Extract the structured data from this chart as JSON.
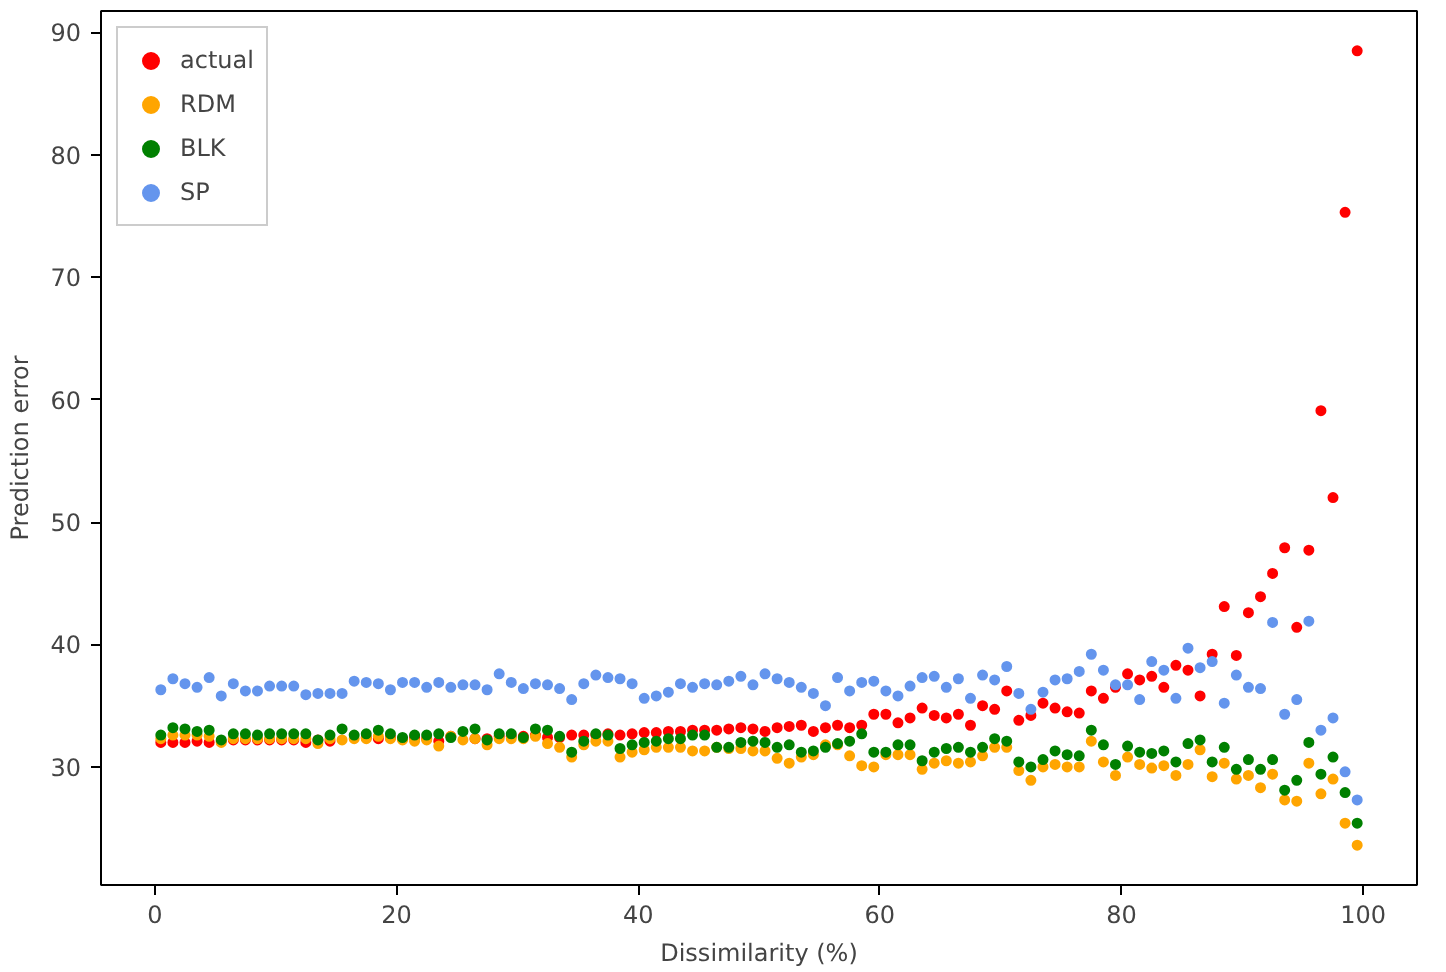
{
  "chart_data": {
    "type": "scatter",
    "xlabel": "Dissimilarity (%)",
    "ylabel": "Prediction error",
    "x": [
      0.5,
      1.5,
      2.5,
      3.5,
      4.5,
      5.5,
      6.5,
      7.5,
      8.5,
      9.5,
      10.5,
      11.5,
      12.5,
      13.5,
      14.5,
      15.5,
      16.5,
      17.5,
      18.5,
      19.5,
      20.5,
      21.5,
      22.5,
      23.5,
      24.5,
      25.5,
      26.5,
      27.5,
      28.5,
      29.5,
      30.5,
      31.5,
      32.5,
      33.5,
      34.5,
      35.5,
      36.5,
      37.5,
      38.5,
      39.5,
      40.5,
      41.5,
      42.5,
      43.5,
      44.5,
      45.5,
      46.5,
      47.5,
      48.5,
      49.5,
      50.5,
      51.5,
      52.5,
      53.5,
      54.5,
      55.5,
      56.5,
      57.5,
      58.5,
      59.5,
      60.5,
      61.5,
      62.5,
      63.5,
      64.5,
      65.5,
      66.5,
      67.5,
      68.5,
      69.5,
      70.5,
      71.5,
      72.5,
      73.5,
      74.5,
      75.5,
      76.5,
      77.5,
      78.5,
      79.5,
      80.5,
      81.5,
      82.5,
      83.5,
      84.5,
      85.5,
      86.5,
      87.5,
      88.5,
      89.5,
      90.5,
      91.5,
      92.5,
      93.5,
      94.5,
      95.5,
      96.5,
      97.5,
      98.5,
      99.5
    ],
    "series": [
      {
        "name": "actual",
        "color": "#ff0000",
        "values": [
          32.0,
          32.0,
          32.0,
          32.1,
          32.0,
          32.1,
          32.2,
          32.2,
          32.2,
          32.2,
          32.2,
          32.2,
          32.0,
          32.2,
          32.1,
          null,
          null,
          32.4,
          32.3,
          32.4,
          32.3,
          32.4,
          32.3,
          32.1,
          32.5,
          null,
          32.3,
          32.3,
          32.5,
          32.5,
          32.5,
          32.6,
          32.4,
          32.4,
          32.6,
          32.6,
          32.6,
          32.7,
          32.6,
          32.7,
          32.8,
          32.8,
          32.9,
          32.9,
          33.0,
          33.0,
          33.0,
          33.1,
          33.2,
          33.1,
          32.9,
          33.2,
          33.3,
          33.4,
          32.9,
          33.2,
          33.4,
          33.2,
          33.4,
          34.3,
          34.3,
          33.6,
          34.0,
          34.8,
          34.2,
          34.0,
          34.3,
          33.4,
          35.0,
          34.7,
          36.2,
          33.8,
          34.2,
          35.2,
          34.8,
          34.5,
          34.4,
          36.2,
          35.6,
          36.5,
          37.6,
          37.1,
          37.4,
          36.5,
          38.3,
          37.9,
          35.8,
          39.2,
          43.1,
          39.1,
          42.6,
          43.9,
          45.8,
          47.9,
          41.4,
          47.7,
          59.1,
          52.0,
          75.3,
          88.5
        ]
      },
      {
        "name": "RDM",
        "color": "#ffa500",
        "values": [
          32.3,
          32.6,
          32.6,
          32.6,
          32.5,
          32.0,
          32.3,
          32.3,
          32.3,
          32.3,
          32.3,
          32.3,
          32.3,
          31.9,
          32.3,
          32.2,
          32.3,
          32.3,
          32.5,
          32.3,
          32.2,
          32.1,
          32.2,
          31.7,
          32.5,
          32.2,
          32.3,
          31.8,
          32.3,
          32.3,
          32.3,
          32.5,
          31.9,
          31.6,
          30.8,
          31.8,
          32.1,
          32.1,
          30.8,
          31.2,
          31.4,
          31.6,
          31.6,
          31.6,
          31.3,
          31.3,
          31.6,
          31.5,
          31.5,
          31.3,
          31.3,
          30.7,
          30.3,
          30.8,
          31.0,
          31.8,
          31.8,
          30.9,
          30.1,
          30.0,
          31.0,
          31.0,
          31.0,
          29.8,
          30.3,
          30.5,
          30.3,
          30.4,
          30.9,
          31.6,
          31.6,
          29.7,
          28.9,
          30.0,
          30.2,
          30.0,
          30.0,
          32.1,
          30.4,
          29.3,
          30.8,
          30.2,
          29.9,
          30.1,
          29.3,
          30.2,
          31.4,
          29.2,
          30.3,
          29.0,
          29.3,
          28.3,
          29.4,
          27.3,
          27.2,
          30.3,
          27.8,
          29.0,
          25.4,
          23.6
        ]
      },
      {
        "name": "BLK",
        "color": "#008000",
        "values": [
          32.6,
          33.2,
          33.1,
          32.9,
          33.0,
          32.2,
          32.7,
          32.7,
          32.6,
          32.7,
          32.7,
          32.7,
          32.7,
          32.2,
          32.6,
          33.1,
          32.6,
          32.7,
          33.0,
          32.7,
          32.4,
          32.6,
          32.6,
          32.7,
          32.4,
          32.9,
          33.1,
          32.2,
          32.7,
          32.7,
          32.4,
          33.1,
          33.0,
          32.5,
          31.2,
          32.1,
          32.7,
          32.6,
          31.5,
          31.8,
          32.0,
          32.1,
          32.3,
          32.3,
          32.6,
          32.6,
          31.6,
          31.6,
          32.0,
          32.1,
          32.0,
          31.6,
          31.8,
          31.2,
          31.3,
          31.6,
          31.9,
          32.1,
          32.7,
          31.2,
          31.2,
          31.8,
          31.8,
          30.5,
          31.2,
          31.5,
          31.6,
          31.2,
          31.6,
          32.3,
          32.1,
          30.4,
          30.0,
          30.6,
          31.3,
          31.0,
          30.9,
          33.0,
          31.8,
          30.2,
          31.7,
          31.2,
          31.1,
          31.3,
          30.4,
          31.9,
          32.2,
          30.4,
          31.6,
          29.8,
          30.6,
          29.8,
          30.6,
          28.1,
          28.9,
          32.0,
          29.4,
          30.8,
          27.9,
          25.4
        ]
      },
      {
        "name": "SP",
        "color": "#6495ed",
        "values": [
          36.3,
          37.2,
          36.8,
          36.5,
          37.3,
          35.8,
          36.8,
          36.2,
          36.2,
          36.6,
          36.6,
          36.6,
          35.9,
          36.0,
          36.0,
          36.0,
          37.0,
          36.9,
          36.8,
          36.3,
          36.9,
          36.9,
          36.5,
          36.9,
          36.5,
          36.7,
          36.7,
          36.3,
          37.6,
          36.9,
          36.4,
          36.8,
          36.7,
          36.4,
          35.5,
          36.8,
          37.5,
          37.3,
          37.2,
          36.8,
          35.6,
          35.8,
          36.1,
          36.8,
          36.5,
          36.8,
          36.7,
          37.0,
          37.4,
          36.7,
          37.6,
          37.2,
          36.9,
          36.5,
          36.0,
          35.0,
          37.3,
          36.2,
          36.9,
          37.0,
          36.2,
          35.8,
          36.6,
          37.3,
          37.4,
          36.5,
          37.2,
          35.6,
          37.5,
          37.1,
          38.2,
          36.0,
          34.7,
          36.1,
          37.1,
          37.2,
          37.8,
          39.2,
          37.9,
          36.7,
          36.7,
          35.5,
          38.6,
          37.9,
          35.6,
          39.7,
          38.1,
          38.6,
          35.2,
          37.5,
          36.5,
          36.4,
          41.8,
          34.3,
          35.5,
          41.9,
          33.0,
          34.0,
          29.6,
          27.3
        ]
      }
    ],
    "xlim": [
      -4.45,
      104.45
    ],
    "ylim": [
      20.35,
      91.75
    ],
    "xticks": [
      0,
      20,
      40,
      60,
      80,
      100
    ],
    "yticks": [
      30,
      40,
      50,
      60,
      70,
      80,
      90
    ],
    "grid": false,
    "legend": "top left",
    "marker": "circle"
  }
}
